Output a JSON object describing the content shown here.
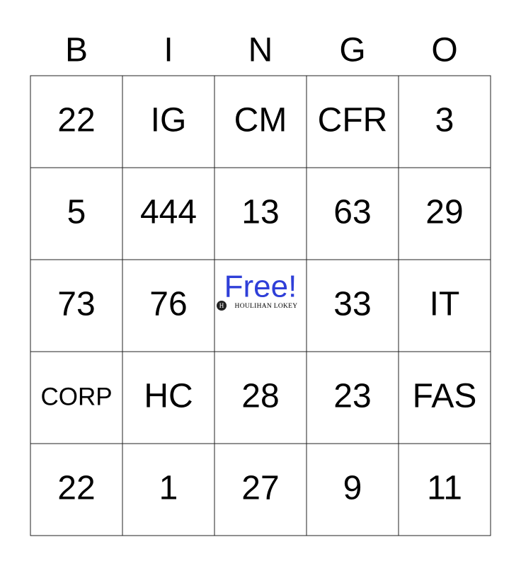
{
  "header": {
    "letters": [
      "B",
      "I",
      "N",
      "G",
      "O"
    ]
  },
  "grid": {
    "rows": [
      [
        "22",
        "IG",
        "CM",
        "CFR",
        "3"
      ],
      [
        "5",
        "444",
        "13",
        "63",
        "29"
      ],
      [
        "73",
        "76",
        {
          "label": "Free!",
          "logo": "HOULIHAN LOKEY"
        },
        "33",
        "IT"
      ],
      [
        "CORP",
        "HC",
        "28",
        "23",
        "FAS"
      ],
      [
        "22",
        "1",
        "27",
        "9",
        "11"
      ]
    ]
  }
}
